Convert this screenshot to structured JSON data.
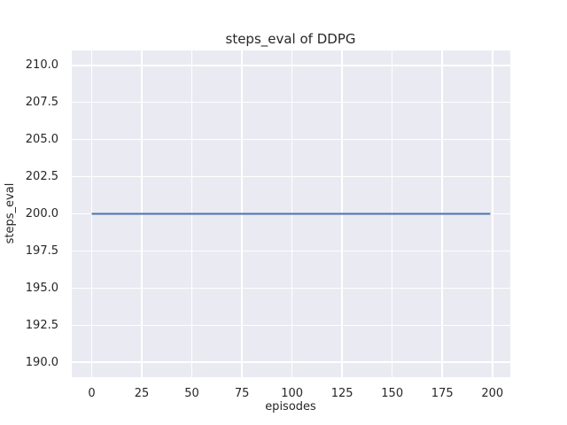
{
  "chart_data": {
    "type": "line",
    "title": "steps_eval of DDPG",
    "xlabel": "episodes",
    "ylabel": "steps_eval",
    "xlim": [
      -9.95,
      208.95
    ],
    "ylim": [
      189.0,
      211.0
    ],
    "grid": true,
    "legend": "none",
    "x_ticks": {
      "values": [
        0,
        25,
        50,
        75,
        100,
        125,
        150,
        175,
        200
      ],
      "labels": [
        "0",
        "25",
        "50",
        "75",
        "100",
        "125",
        "150",
        "175",
        "200"
      ]
    },
    "y_ticks": {
      "values": [
        190.0,
        192.5,
        195.0,
        197.5,
        200.0,
        202.5,
        205.0,
        207.5,
        210.0
      ],
      "labels": [
        "190.0",
        "192.5",
        "195.0",
        "197.5",
        "200.0",
        "202.5",
        "205.0",
        "207.5",
        "210.0"
      ]
    },
    "series": [
      {
        "name": "DDPG",
        "x": [
          0,
          199
        ],
        "y": [
          200,
          200
        ],
        "color": "#4c72b0",
        "linewidth": 2,
        "note": "constant steps_eval value of 200 across episodes 0-199"
      }
    ],
    "colors": {
      "figure_background": "#ffffff",
      "axes_background": "#eaeaf2",
      "gridline": "#ffffff",
      "text": "#262626",
      "line": "#4c72b0"
    }
  }
}
